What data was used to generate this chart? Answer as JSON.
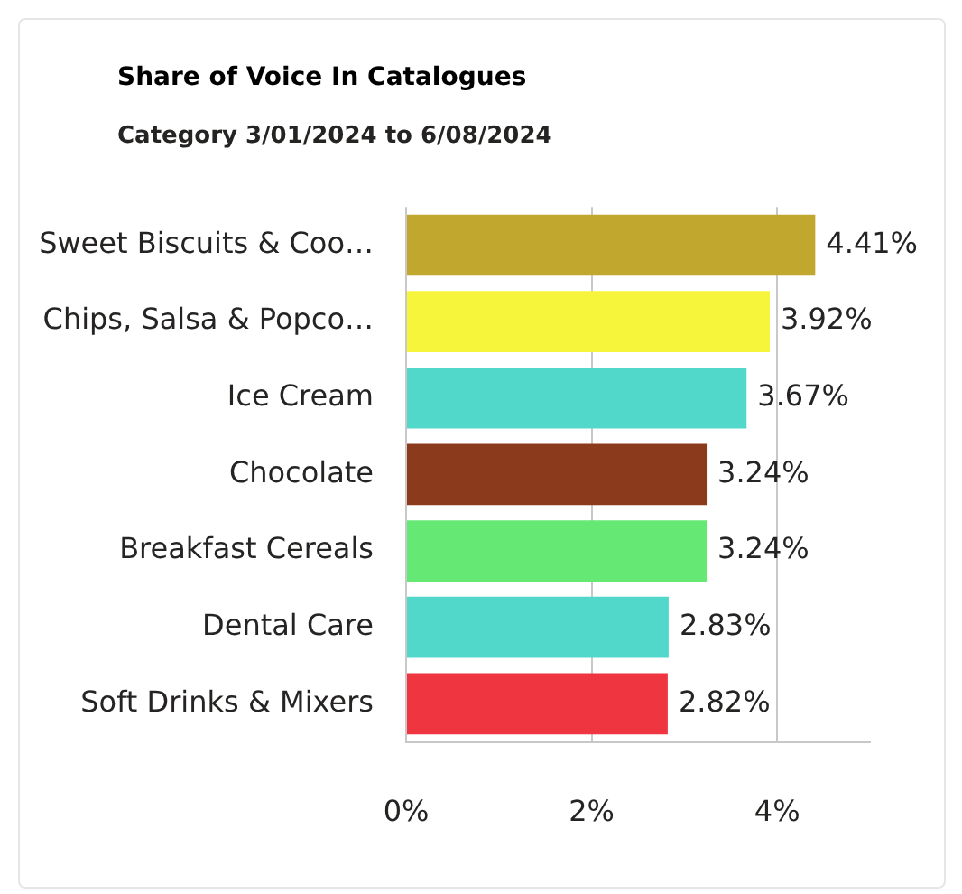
{
  "chart_data": {
    "type": "bar",
    "orientation": "horizontal",
    "title": "Share of Voice In Catalogues",
    "subtitle": "Category 3/01/2024 to 6/08/2024",
    "categories": [
      "Sweet Biscuits & Coo…",
      "Chips, Salsa & Popco…",
      "Ice Cream",
      "Chocolate",
      "Breakfast Cereals",
      "Dental Care",
      "Soft Drinks & Mixers"
    ],
    "values": [
      4.41,
      3.92,
      3.67,
      3.24,
      3.24,
      2.83,
      2.82
    ],
    "value_labels": [
      "4.41%",
      "3.92%",
      "3.67%",
      "3.24%",
      "3.24%",
      "2.83%",
      "2.82%"
    ],
    "colors": [
      "#c1a72d",
      "#f7f53b",
      "#52d8cb",
      "#8b3a1b",
      "#66e874",
      "#52d8cb",
      "#ee3540"
    ],
    "xlim": [
      0,
      5
    ],
    "xticks": [
      {
        "value": 0,
        "label": "0%"
      },
      {
        "value": 2,
        "label": "2%"
      },
      {
        "value": 4,
        "label": "4%"
      }
    ],
    "grid": "x"
  }
}
